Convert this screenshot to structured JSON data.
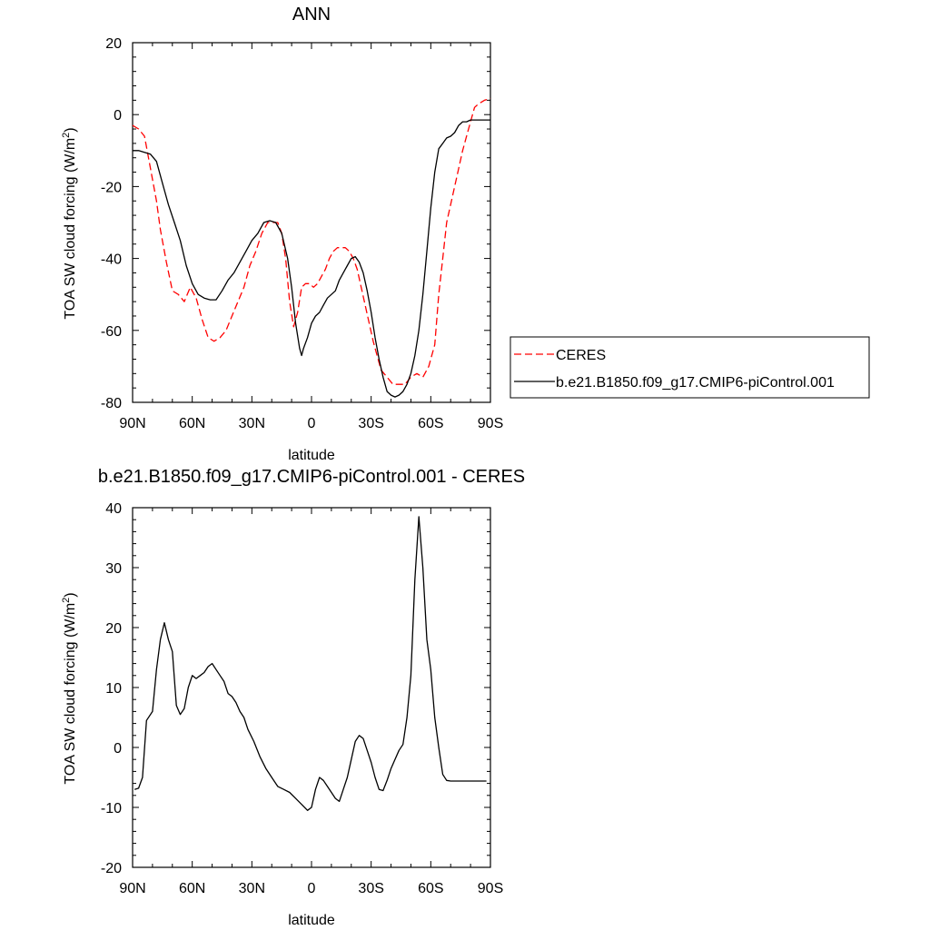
{
  "chart_data": [
    {
      "type": "line",
      "title": "ANN",
      "xlabel": "latitude",
      "ylabel_main": "TOA SW cloud forcing (W/m",
      "ylabel_sup": "2",
      "ylabel_tail": ")",
      "xlim": [
        90,
        -90
      ],
      "ylim": [
        -80,
        20
      ],
      "xticks": [
        90,
        60,
        30,
        0,
        -30,
        -60,
        -90
      ],
      "xtick_labels": [
        "90N",
        "60N",
        "30N",
        "0",
        "30S",
        "60S",
        "90S"
      ],
      "yticks": [
        -80,
        -60,
        -40,
        -20,
        0,
        20
      ],
      "ytick_labels": [
        "-80",
        "-60",
        "-40",
        "-20",
        "0",
        "20"
      ],
      "legend_position": "right",
      "series": [
        {
          "name": "CERES",
          "color": "#ff0000",
          "dash": "dashed",
          "x": [
            90,
            87,
            84,
            82,
            80,
            78,
            76,
            73,
            70,
            67,
            64,
            61,
            58,
            55,
            52,
            49,
            46,
            43,
            40,
            37,
            34,
            31,
            28,
            25,
            22,
            19,
            17,
            15,
            13,
            11,
            9,
            7,
            5,
            3,
            1,
            -1,
            -3,
            -5,
            -7,
            -9,
            -11,
            -13,
            -15,
            -17,
            -19,
            -21,
            -23,
            -25,
            -27,
            -29,
            -31,
            -33,
            -35,
            -38,
            -41,
            -44,
            -47,
            -50,
            -53,
            -56,
            -59,
            -62,
            -64,
            -66,
            -68,
            -70,
            -72,
            -74,
            -76,
            -78,
            -80,
            -82,
            -84,
            -87,
            -90
          ],
          "y": [
            -3,
            -4,
            -6,
            -12,
            -18,
            -24,
            -32,
            -41,
            -49,
            -50,
            -52,
            -48,
            -51,
            -57,
            -62,
            -63,
            -62,
            -60,
            -56,
            -52,
            -48,
            -42,
            -38,
            -33,
            -30,
            -30,
            -30,
            -33,
            -40,
            -52,
            -59,
            -55,
            -48,
            -47,
            -47,
            -48,
            -47,
            -45,
            -43,
            -40,
            -38,
            -37,
            -37,
            -37,
            -38,
            -40,
            -43,
            -48,
            -53,
            -58,
            -63,
            -67,
            -71,
            -73,
            -75,
            -75,
            -75,
            -73,
            -72,
            -73,
            -70,
            -64,
            -50,
            -40,
            -30,
            -25,
            -20,
            -15,
            -10,
            -6,
            -2,
            2,
            3,
            4,
            4.5
          ]
        },
        {
          "name": "b.e21.B1850.f09_g17.CMIP6-piControl.001",
          "color": "#000000",
          "dash": "solid",
          "x": [
            90,
            87,
            84,
            81,
            78,
            75,
            72,
            69,
            66,
            63,
            60,
            57,
            54,
            51,
            48,
            45,
            42,
            39,
            36,
            33,
            30,
            27,
            24,
            21,
            18,
            15,
            12,
            10,
            8,
            6,
            5,
            4,
            2,
            0,
            -2,
            -4,
            -6,
            -8,
            -10,
            -12,
            -14,
            -16,
            -18,
            -20,
            -22,
            -24,
            -26,
            -28,
            -30,
            -32,
            -34,
            -36,
            -38,
            -40,
            -42,
            -44,
            -46,
            -48,
            -50,
            -52,
            -54,
            -56,
            -58,
            -60,
            -62,
            -64,
            -66,
            -68,
            -70,
            -72,
            -74,
            -76,
            -78,
            -80,
            -82,
            -84,
            -86,
            -88,
            -90
          ],
          "y": [
            -10,
            -10,
            -10.5,
            -11,
            -13,
            -19,
            -25,
            -30,
            -35,
            -42,
            -47,
            -50,
            -51,
            -51.5,
            -51.5,
            -49,
            -46,
            -44,
            -41,
            -38,
            -35,
            -33,
            -30,
            -29.5,
            -30,
            -33,
            -40,
            -48,
            -58,
            -65,
            -67,
            -65,
            -62,
            -58,
            -56,
            -55,
            -53,
            -51,
            -50,
            -49,
            -46,
            -44,
            -42,
            -40,
            -39.5,
            -41,
            -44,
            -49,
            -55,
            -62,
            -68,
            -73,
            -77,
            -78,
            -78.5,
            -78,
            -77,
            -75,
            -72,
            -67,
            -60,
            -50,
            -38,
            -26,
            -16,
            -9.5,
            -8,
            -6.5,
            -6,
            -5,
            -3,
            -2,
            -2,
            -1.5,
            -1.5,
            -1.5,
            -1.5,
            -1.5,
            -1.5
          ]
        }
      ]
    },
    {
      "type": "line",
      "title": "b.e21.B1850.f09_g17.CMIP6-piControl.001 - CERES",
      "xlabel": "latitude",
      "ylabel_main": "TOA SW cloud forcing (W/m",
      "ylabel_sup": "2",
      "ylabel_tail": ")",
      "xlim": [
        90,
        -90
      ],
      "ylim": [
        -20,
        40
      ],
      "xticks": [
        90,
        60,
        30,
        0,
        -30,
        -60,
        -90
      ],
      "xtick_labels": [
        "90N",
        "60N",
        "30N",
        "0",
        "30S",
        "60S",
        "90S"
      ],
      "yticks": [
        -20,
        -10,
        0,
        10,
        20,
        30,
        40
      ],
      "ytick_labels": [
        "-20",
        "-10",
        "0",
        "10",
        "20",
        "30",
        "40"
      ],
      "series": [
        {
          "color": "#000000",
          "dash": "solid",
          "x": [
            89,
            87,
            85,
            83,
            80,
            78,
            76,
            74,
            72,
            70,
            68,
            66,
            64,
            62,
            60,
            58,
            56,
            54,
            52,
            50,
            48,
            46,
            44,
            42,
            40,
            38,
            36,
            34,
            32,
            29,
            26,
            23,
            20,
            17,
            14,
            11,
            8,
            5,
            2,
            0,
            -2,
            -4,
            -6,
            -8,
            -10,
            -12,
            -14,
            -16,
            -18,
            -20,
            -22,
            -24,
            -26,
            -28,
            -30,
            -32,
            -34,
            -36,
            -38,
            -40,
            -42,
            -44,
            -46,
            -48,
            -50,
            -52,
            -54,
            -56,
            -58,
            -60,
            -62,
            -64,
            -66,
            -68,
            -70,
            -72,
            -74,
            -76,
            -78,
            -80,
            -82,
            -84,
            -86,
            -88
          ],
          "y": [
            -7,
            -6.8,
            -5,
            4.5,
            6,
            13,
            18,
            20.8,
            18,
            16,
            7,
            5.5,
            6.5,
            10,
            12,
            11.5,
            12,
            12.5,
            13.5,
            14,
            13,
            12,
            11,
            9,
            8.5,
            7.5,
            6,
            5,
            3,
            1,
            -1.5,
            -3.5,
            -5,
            -6.5,
            -7,
            -7.5,
            -8.5,
            -9.5,
            -10.5,
            -10,
            -7,
            -5,
            -5.5,
            -6.5,
            -7.5,
            -8.5,
            -9,
            -7,
            -5,
            -2,
            1,
            2,
            1.5,
            -0.5,
            -2.5,
            -5,
            -7,
            -7.2,
            -5.5,
            -3.5,
            -2,
            -0.5,
            0.5,
            5,
            12,
            28,
            38.5,
            30,
            18,
            13,
            5,
            0,
            -4.5,
            -5.5,
            -5.6,
            -5.6,
            -5.6,
            -5.6,
            -5.6,
            -5.6,
            -5.6,
            -5.6,
            -5.6,
            -5.6
          ]
        }
      ]
    }
  ]
}
